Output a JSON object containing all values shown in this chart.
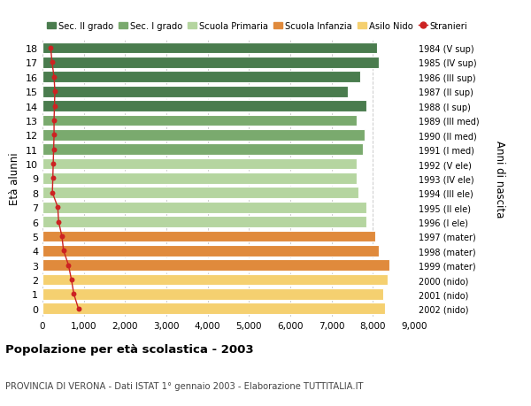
{
  "ages": [
    18,
    17,
    16,
    15,
    14,
    13,
    12,
    11,
    10,
    9,
    8,
    7,
    6,
    5,
    4,
    3,
    2,
    1,
    0
  ],
  "right_labels": [
    "1984 (V sup)",
    "1985 (IV sup)",
    "1986 (III sup)",
    "1987 (II sup)",
    "1988 (I sup)",
    "1989 (III med)",
    "1990 (II med)",
    "1991 (I med)",
    "1992 (V ele)",
    "1993 (IV ele)",
    "1994 (III ele)",
    "1995 (II ele)",
    "1996 (I ele)",
    "1997 (mater)",
    "1998 (mater)",
    "1999 (mater)",
    "2000 (nido)",
    "2001 (nido)",
    "2002 (nido)"
  ],
  "bar_values": [
    8100,
    8150,
    7700,
    7400,
    7850,
    7600,
    7800,
    7750,
    7600,
    7600,
    7650,
    7850,
    7850,
    8050,
    8150,
    8400,
    8350,
    8250,
    8300
  ],
  "bar_colors": [
    "#4a7c4e",
    "#4a7c4e",
    "#4a7c4e",
    "#4a7c4e",
    "#4a7c4e",
    "#7aaa6e",
    "#7aaa6e",
    "#7aaa6e",
    "#b5d5a0",
    "#b5d5a0",
    "#b5d5a0",
    "#b5d5a0",
    "#b5d5a0",
    "#e08a3c",
    "#e08a3c",
    "#e08a3c",
    "#f5d070",
    "#f5d070",
    "#f5d070"
  ],
  "stranieri_values": [
    200,
    230,
    280,
    300,
    290,
    280,
    280,
    270,
    260,
    250,
    240,
    370,
    390,
    470,
    510,
    630,
    700,
    760,
    870
  ],
  "title": "Popolazione per età scolastica - 2003",
  "subtitle": "PROVINCIA DI VERONA - Dati ISTAT 1° gennaio 2003 - Elaborazione TUTTITALIA.IT",
  "ylabel": "Età alunni",
  "right_ylabel": "Anni di nascita",
  "xlim": [
    0,
    9000
  ],
  "xticks": [
    0,
    1000,
    2000,
    3000,
    4000,
    5000,
    6000,
    7000,
    8000,
    9000
  ],
  "xtick_labels": [
    "0",
    "1,000",
    "2,000",
    "3,000",
    "4,000",
    "5,000",
    "6,000",
    "7,000",
    "8,000",
    "9,000"
  ],
  "legend_labels": [
    "Sec. II grado",
    "Sec. I grado",
    "Scuola Primaria",
    "Scuola Infanzia",
    "Asilo Nido",
    "Stranieri"
  ],
  "legend_colors": [
    "#4a7c4e",
    "#7aaa6e",
    "#b5d5a0",
    "#e08a3c",
    "#f5d070",
    "#cc2222"
  ],
  "bar_height": 0.78,
  "background_color": "#ffffff",
  "grid_color": "#cccccc"
}
